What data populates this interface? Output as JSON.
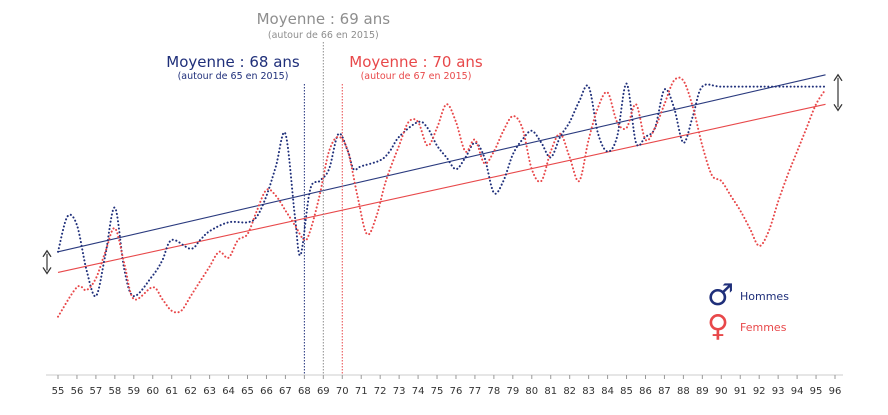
{
  "chart_data": {
    "type": "line",
    "title": "",
    "xlabel": "",
    "ylabel": "",
    "x": [
      55,
      56,
      57,
      58,
      59,
      60,
      61,
      62,
      63,
      64,
      65,
      66,
      67,
      68,
      69,
      70,
      71,
      72,
      73,
      74,
      75,
      76,
      77,
      78,
      79,
      80,
      81,
      82,
      83,
      84,
      85,
      86,
      87,
      88,
      89,
      90,
      91,
      92,
      93,
      94,
      95,
      96
    ],
    "xlim": [
      55,
      96
    ],
    "ylim": [
      0,
      100
    ],
    "grid": false,
    "legend_position": "bottom-right",
    "series": [
      {
        "name": "Hommes",
        "color": "#1f2f7a",
        "style": "dotted",
        "points": [
          [
            55,
            36
          ],
          [
            55.5,
            48
          ],
          [
            56,
            45
          ],
          [
            56.5,
            30
          ],
          [
            57,
            21
          ],
          [
            57.5,
            35
          ],
          [
            58,
            51
          ],
          [
            58.5,
            30
          ],
          [
            59,
            21
          ],
          [
            60,
            28
          ],
          [
            60.5,
            33
          ],
          [
            61,
            40
          ],
          [
            62,
            37
          ],
          [
            62.5,
            40
          ],
          [
            63,
            43
          ],
          [
            64,
            46
          ],
          [
            65,
            46
          ],
          [
            65.5,
            48
          ],
          [
            66,
            55
          ],
          [
            66.5,
            65
          ],
          [
            67,
            76
          ],
          [
            67.5,
            48
          ],
          [
            67.8,
            35
          ],
          [
            68.3,
            57
          ],
          [
            68.8,
            60
          ],
          [
            69.3,
            64
          ],
          [
            69.8,
            76
          ],
          [
            70.3,
            70
          ],
          [
            70.6,
            64
          ],
          [
            71,
            65
          ],
          [
            72,
            67
          ],
          [
            72.5,
            70
          ],
          [
            73,
            75
          ],
          [
            74,
            80
          ],
          [
            74.5,
            78
          ],
          [
            75,
            72
          ],
          [
            75.5,
            68
          ],
          [
            76,
            64
          ],
          [
            76.5,
            68
          ],
          [
            77,
            73
          ],
          [
            77.5,
            68
          ],
          [
            78,
            56
          ],
          [
            78.5,
            60
          ],
          [
            79,
            69
          ],
          [
            79.5,
            74
          ],
          [
            80,
            77
          ],
          [
            80.5,
            73
          ],
          [
            81,
            68
          ],
          [
            81.5,
            75
          ],
          [
            82,
            80
          ],
          [
            82.5,
            87
          ],
          [
            83,
            92
          ],
          [
            83.5,
            76
          ],
          [
            84,
            70
          ],
          [
            84.5,
            75
          ],
          [
            85,
            93
          ],
          [
            85.5,
            73
          ],
          [
            86,
            75
          ],
          [
            86.5,
            78
          ],
          [
            87,
            91
          ],
          [
            87.5,
            85
          ],
          [
            88,
            73
          ],
          [
            88.5,
            82
          ],
          [
            89,
            92
          ],
          [
            90,
            92
          ],
          [
            92,
            92
          ],
          [
            94,
            92
          ],
          [
            95.5,
            92
          ]
        ]
      },
      {
        "name": "Femmes",
        "color": "#e8484a",
        "style": "dotted",
        "points": [
          [
            55,
            14
          ],
          [
            56,
            24
          ],
          [
            56.5,
            23
          ],
          [
            57,
            27
          ],
          [
            57.5,
            36
          ],
          [
            58,
            44
          ],
          [
            58.5,
            32
          ],
          [
            59,
            20
          ],
          [
            60,
            24
          ],
          [
            60.5,
            20
          ],
          [
            61,
            16
          ],
          [
            61.5,
            16
          ],
          [
            62,
            21
          ],
          [
            62.5,
            26
          ],
          [
            63,
            31
          ],
          [
            63.5,
            36
          ],
          [
            64,
            34
          ],
          [
            64.5,
            40
          ],
          [
            65,
            42
          ],
          [
            65.5,
            50
          ],
          [
            66,
            57
          ],
          [
            66.5,
            55
          ],
          [
            67,
            50
          ],
          [
            67.5,
            45
          ],
          [
            68,
            40
          ],
          [
            68.3,
            43
          ],
          [
            68.8,
            55
          ],
          [
            69.3,
            70
          ],
          [
            69.8,
            75
          ],
          [
            70.3,
            70
          ],
          [
            70.8,
            55
          ],
          [
            71.3,
            42
          ],
          [
            71.8,
            48
          ],
          [
            72.3,
            60
          ],
          [
            73,
            72
          ],
          [
            73.5,
            80
          ],
          [
            74,
            80
          ],
          [
            74.5,
            72
          ],
          [
            75,
            78
          ],
          [
            75.5,
            86
          ],
          [
            76,
            80
          ],
          [
            76.5,
            70
          ],
          [
            77,
            74
          ],
          [
            77.5,
            66
          ],
          [
            78,
            70
          ],
          [
            78.5,
            77
          ],
          [
            79,
            82
          ],
          [
            79.5,
            78
          ],
          [
            80,
            64
          ],
          [
            80.5,
            60
          ],
          [
            81,
            70
          ],
          [
            81.5,
            76
          ],
          [
            82,
            68
          ],
          [
            82.5,
            60
          ],
          [
            83,
            74
          ],
          [
            83.5,
            85
          ],
          [
            84,
            90
          ],
          [
            84.5,
            80
          ],
          [
            85,
            78
          ],
          [
            85.5,
            86
          ],
          [
            86,
            74
          ],
          [
            86.5,
            78
          ],
          [
            87,
            86
          ],
          [
            87.5,
            94
          ],
          [
            88,
            94
          ],
          [
            88.5,
            85
          ],
          [
            89,
            72
          ],
          [
            89.5,
            62
          ],
          [
            90,
            60
          ],
          [
            90.5,
            55
          ],
          [
            91,
            50
          ],
          [
            91.5,
            44
          ],
          [
            92,
            38
          ],
          [
            92.5,
            43
          ],
          [
            93,
            53
          ],
          [
            93.5,
            62
          ],
          [
            94,
            70
          ],
          [
            94.5,
            78
          ],
          [
            95,
            86
          ],
          [
            95.5,
            91
          ]
        ]
      }
    ],
    "trend_lines": [
      {
        "series": "Hommes",
        "color": "#2a3a7e",
        "from": [
          55,
          36
        ],
        "to": [
          95.5,
          96
        ]
      },
      {
        "series": "Femmes",
        "color": "#e8484a",
        "from": [
          55,
          29
        ],
        "to": [
          95.5,
          86
        ]
      }
    ],
    "means": [
      {
        "label": "Moyenne : 69 ans",
        "sub": "(autour de 66 en 2015)",
        "x": 69,
        "color": "#8e8e8e"
      },
      {
        "label": "Moyenne : 68 ans",
        "sub": "(autour de 65 en 2015)",
        "x": 68,
        "color": "#1f2f7a"
      },
      {
        "label": "Moyenne : 70 ans",
        "sub": "(autour de 67 en 2015)",
        "x": 70,
        "color": "#e8484a"
      }
    ],
    "legend": [
      {
        "label": "Hommes",
        "symbol": "♂",
        "color": "#1f2f7a"
      },
      {
        "label": "Femmes",
        "symbol": "♀",
        "color": "#e8484a"
      }
    ]
  }
}
